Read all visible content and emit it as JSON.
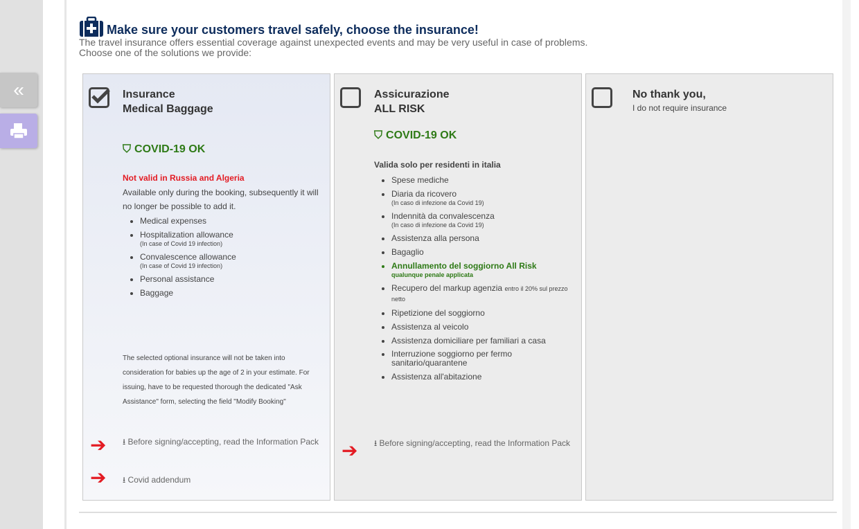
{
  "sidebar": {
    "collapse_icon": "double-chevron-left-icon",
    "print_icon": "printer-icon",
    "print_color": "#b9aee6"
  },
  "header": {
    "icon": "medical-suitcase-icon",
    "title": "Make sure your customers travel safely, choose the insurance!",
    "line1": "The travel insurance offers essential coverage against unexpected events and may be very useful in case of problems.",
    "line2": "Choose one of the solutions we provide:"
  },
  "options": [
    {
      "checked": true,
      "title1": "Insurance",
      "title2": "Medical Baggage",
      "covid": "COVID-19 OK",
      "warning": "Not valid in Russia and Algeria",
      "note": "Available only during the booking, subsequently it will no longer be possible to add it.",
      "items": [
        {
          "label": "Medical expenses"
        },
        {
          "label": "Hospitalization allowance",
          "sub": "(In case of Covid 19 infection)"
        },
        {
          "label": "Convalescence allowance",
          "sub": "(In case of Covid 19 infection)"
        },
        {
          "label": "Personal assistance"
        },
        {
          "label": "Baggage"
        }
      ],
      "disclaimer": "The selected optional insurance will not be taken into consideration for babies up the age of 2 in your estimate. For issuing, have to be requested thorough the dedicated \"Ask Assistance\" form, selecting the field \"Modify Booking\"",
      "links": [
        "Before signing/accepting, read the Information Pack",
        "Covid addendum"
      ]
    },
    {
      "checked": false,
      "title1": "Assicurazione",
      "title2": "ALL RISK",
      "covid": "COVID-19 OK",
      "heading": "Valida solo per residenti in italia",
      "items": [
        {
          "label": "Spese mediche"
        },
        {
          "label": "Diaria da ricovero",
          "sub": "(In caso di infezione da Covid 19)"
        },
        {
          "label": "Indennità da convalescenza",
          "sub": "(In caso di infezione da Covid 19)"
        },
        {
          "label": "Assistenza alla persona"
        },
        {
          "label": "Bagaglio"
        },
        {
          "label": "Annullamento del soggiorno All Risk",
          "sub": "qualunque penale applicata",
          "highlight": true
        },
        {
          "label": "Recupero del markup agenzia",
          "small": "entro il 20% sul prezzo netto"
        },
        {
          "label": "Ripetizione del soggiorno"
        },
        {
          "label": "Assistenza al veicolo"
        },
        {
          "label": "Assistenza domiciliare per familiari a casa"
        },
        {
          "label": "Interruzione soggiorno per fermo sanitario/quarantene"
        },
        {
          "label": "Assistenza all'abitazione"
        }
      ],
      "links": [
        "Before signing/accepting, read the Information Pack"
      ]
    },
    {
      "checked": false,
      "title1": "No thank you,",
      "subtitle": "I do not require insurance"
    }
  ],
  "colors": {
    "title": "#0d2c5c",
    "green": "#2e7a16",
    "warning": "#e31b23",
    "arrow": "#e31b23"
  }
}
